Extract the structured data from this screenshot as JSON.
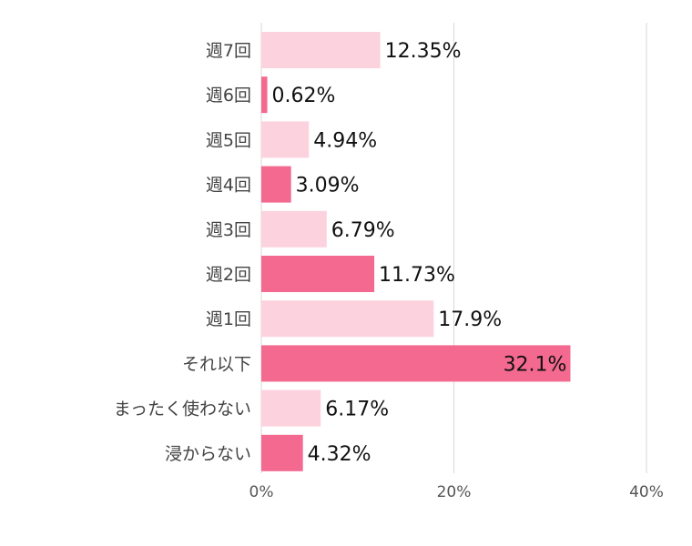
{
  "chart_data": {
    "type": "bar",
    "orientation": "horizontal",
    "categories": [
      "週7回",
      "週6回",
      "週5回",
      "週4回",
      "週3回",
      "週2回",
      "週1回",
      "それ以下",
      "まったく使わない",
      "浸からない"
    ],
    "values": [
      12.35,
      0.62,
      4.94,
      3.09,
      6.79,
      11.73,
      17.9,
      32.1,
      6.17,
      4.32
    ],
    "value_labels": [
      "12.35%",
      "0.62%",
      "4.94%",
      "3.09%",
      "6.79%",
      "11.73%",
      "17.9%",
      "32.1%",
      "6.17%",
      "4.32%"
    ],
    "xlim": [
      0,
      40
    ],
    "xticks": [
      0,
      20,
      40
    ],
    "xtick_labels": [
      "0%",
      "20%",
      "40%"
    ],
    "grid": true,
    "colors": {
      "light": "#fcd2de",
      "dark": "#f46990",
      "grid": "#d9d9d9"
    },
    "title": "",
    "xlabel": "",
    "ylabel": ""
  }
}
